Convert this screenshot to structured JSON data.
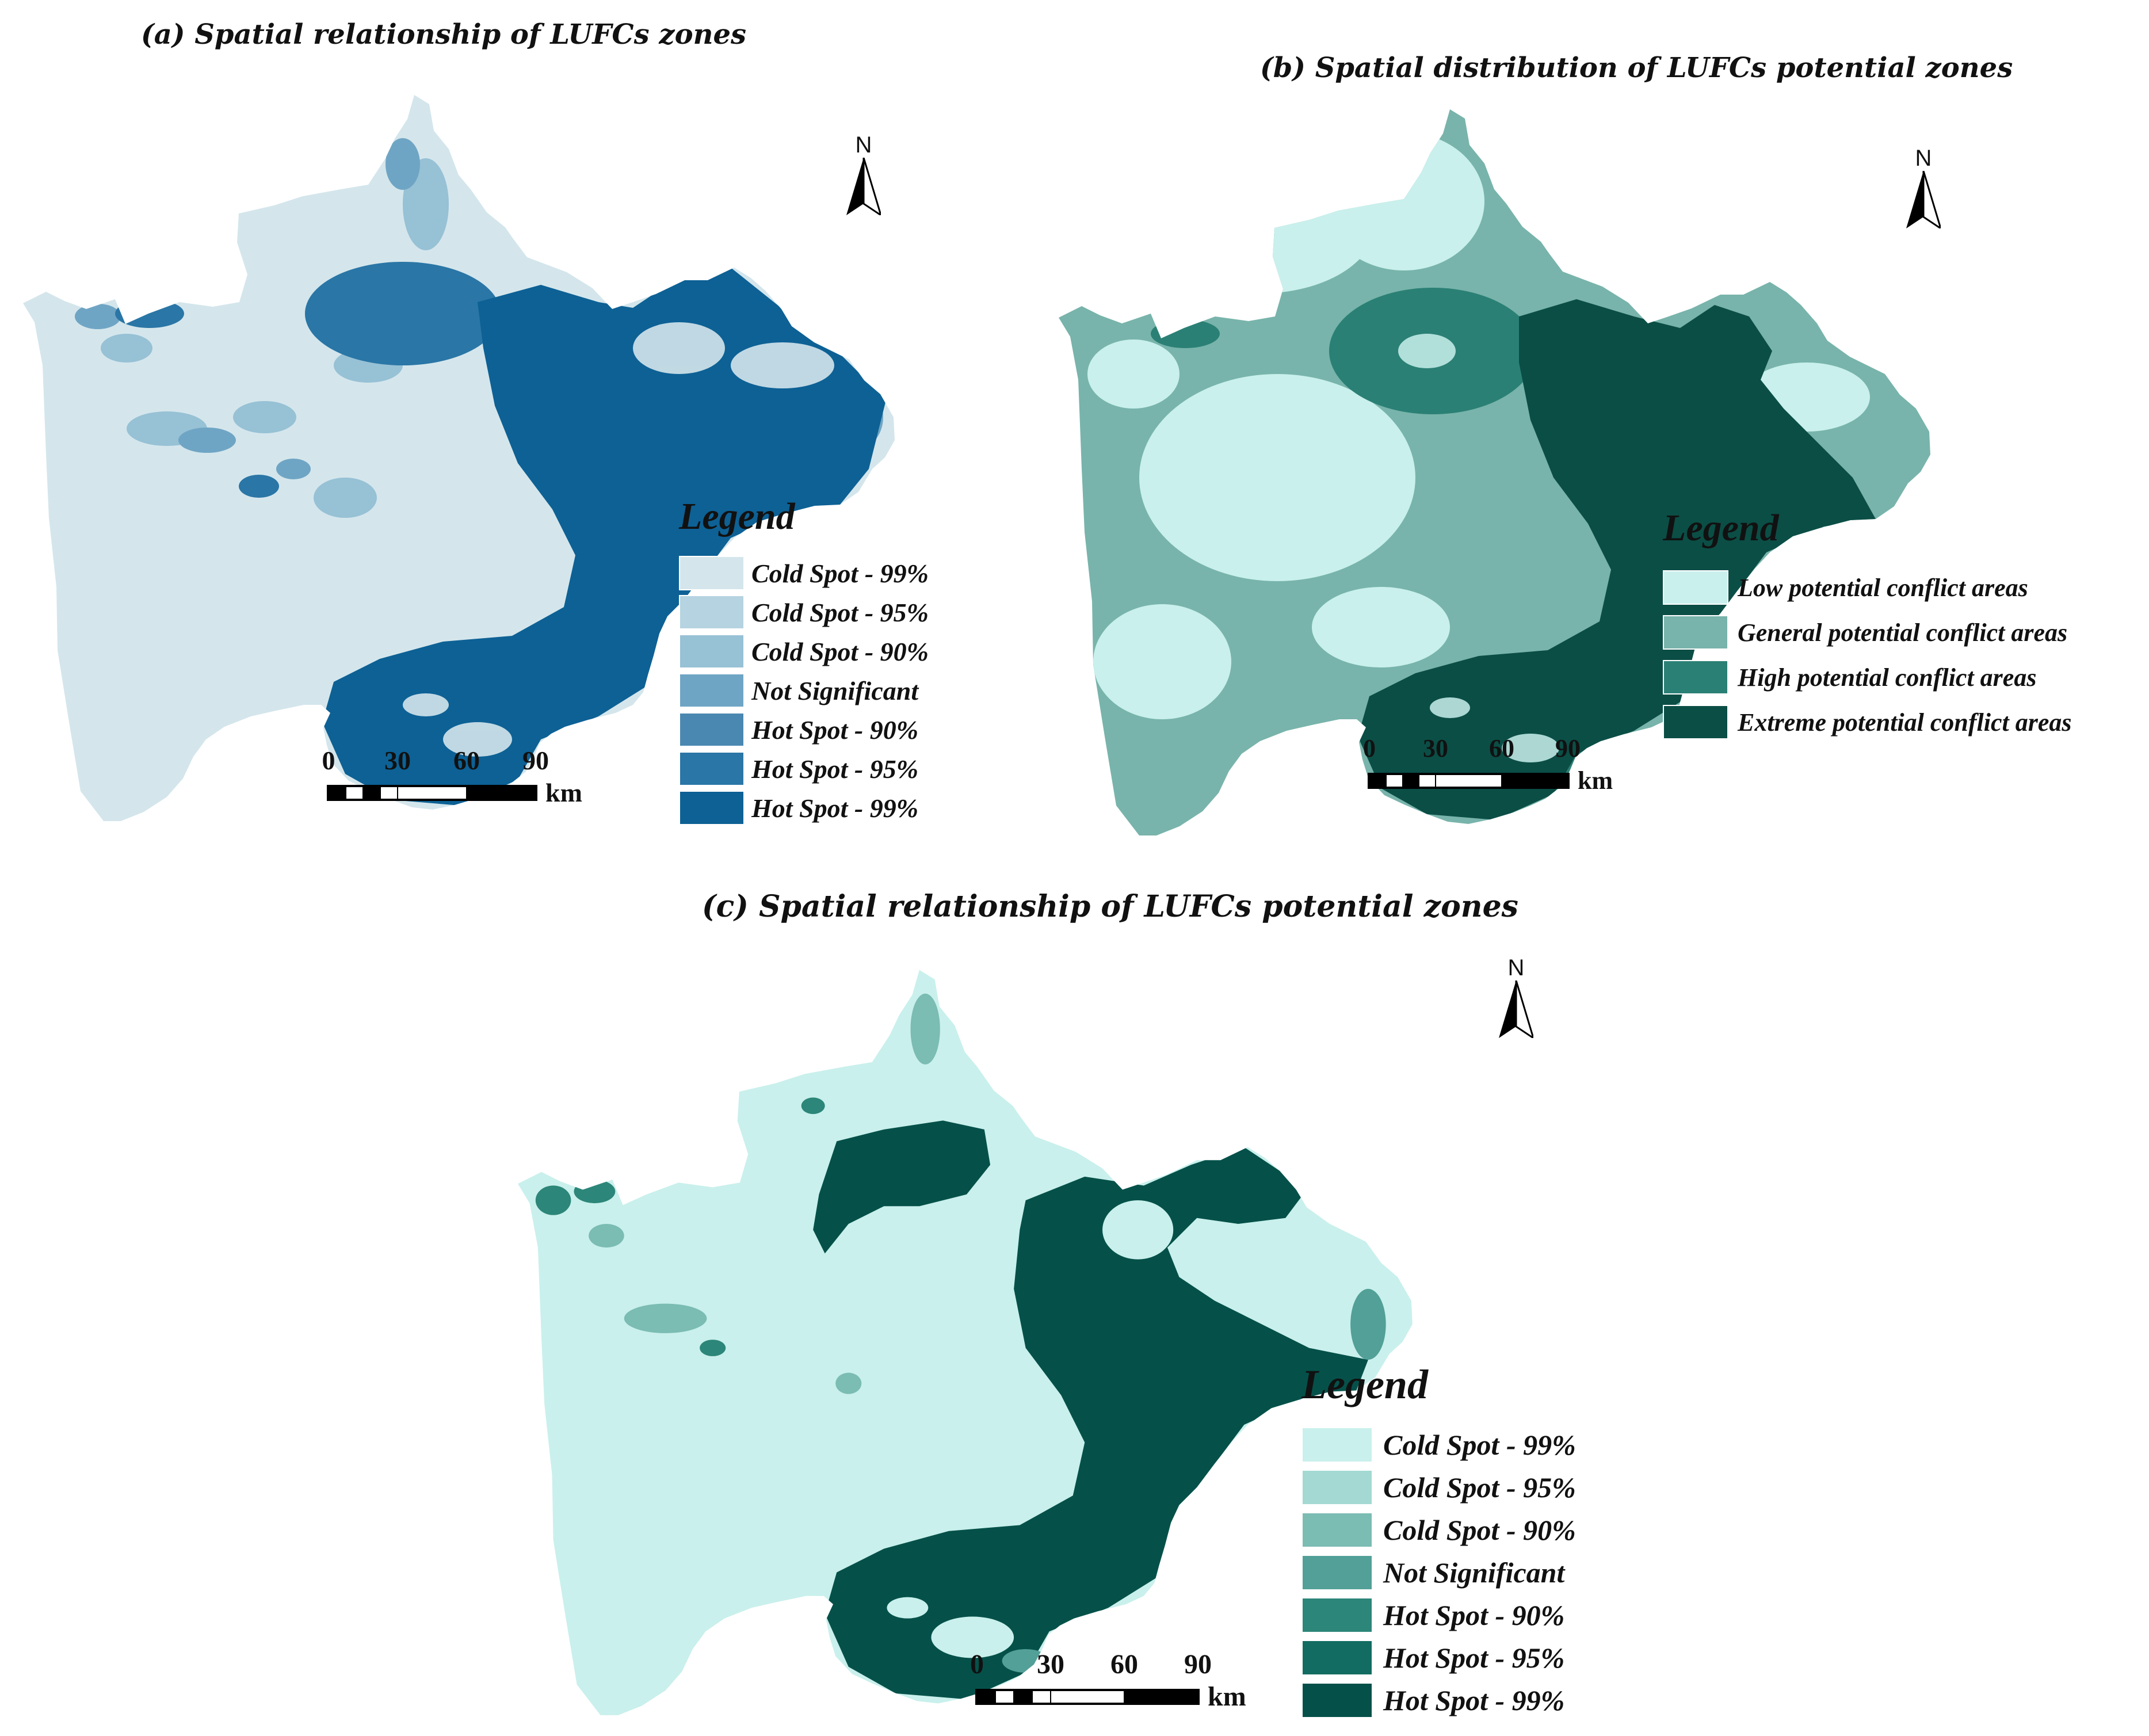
{
  "panels": {
    "a": {
      "title": "(a) Spatial relationship of LUFCs zones",
      "north_label": "N",
      "legend": {
        "title": "Legend",
        "items": [
          {
            "label": "Cold Spot - 99%",
            "color": "#d4e6ec"
          },
          {
            "label": "Cold Spot - 95%",
            "color": "#b5d3e0"
          },
          {
            "label": "Cold Spot - 90%",
            "color": "#97c1d5"
          },
          {
            "label": "Not Significant",
            "color": "#6fa5c4"
          },
          {
            "label": "Hot Spot - 90%",
            "color": "#4a88b1"
          },
          {
            "label": "Hot Spot - 95%",
            "color": "#2a76a6"
          },
          {
            "label": "Hot Spot - 99%",
            "color": "#0d6195"
          }
        ]
      },
      "scale": {
        "ticks": [
          "0",
          "30",
          "60",
          "90"
        ],
        "unit": "km"
      }
    },
    "b": {
      "title": "(b) Spatial distribution of LUFCs potential zones",
      "north_label": "N",
      "legend": {
        "title": "Legend",
        "items": [
          {
            "label": "Low potential conflict areas",
            "color": "#c9f0ec"
          },
          {
            "label": "General potential conflict areas",
            "color": "#78b4ab"
          },
          {
            "label": "High potential conflict areas",
            "color": "#2b8075"
          },
          {
            "label": "Extreme potential conflict areas",
            "color": "#0b4e46"
          }
        ]
      },
      "scale": {
        "ticks": [
          "0",
          "30",
          "60",
          "90"
        ],
        "unit": "km"
      }
    },
    "c": {
      "title": "(c) Spatial relationship of LUFCs potential zones",
      "north_label": "N",
      "legend": {
        "title": "Legend",
        "items": [
          {
            "label": "Cold Spot - 99%",
            "color": "#c9f0ec"
          },
          {
            "label": "Cold Spot - 95%",
            "color": "#a3d9d2"
          },
          {
            "label": "Cold Spot - 90%",
            "color": "#7bbcb3"
          },
          {
            "label": "Not Significant",
            "color": "#52a097"
          },
          {
            "label": "Hot Spot - 90%",
            "color": "#2c8679"
          },
          {
            "label": "Hot Spot - 95%",
            "color": "#126c61"
          },
          {
            "label": "Hot Spot - 99%",
            "color": "#05514a"
          }
        ]
      },
      "scale": {
        "ticks": [
          "0",
          "30",
          "60",
          "90"
        ],
        "unit": "km"
      }
    }
  }
}
